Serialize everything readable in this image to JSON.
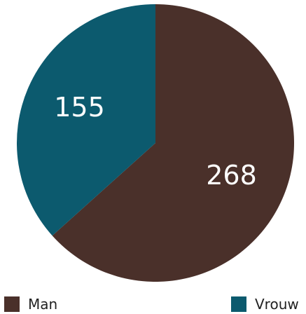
{
  "chart_data": {
    "type": "pie",
    "categories": [
      "Man",
      "Vrouw"
    ],
    "values": [
      268,
      155
    ],
    "colors": [
      "#4a302a",
      "#0c5a6e"
    ],
    "legend": "bottom"
  },
  "legend": {
    "man_label": "Man",
    "vrouw_label": "Vrouw"
  }
}
